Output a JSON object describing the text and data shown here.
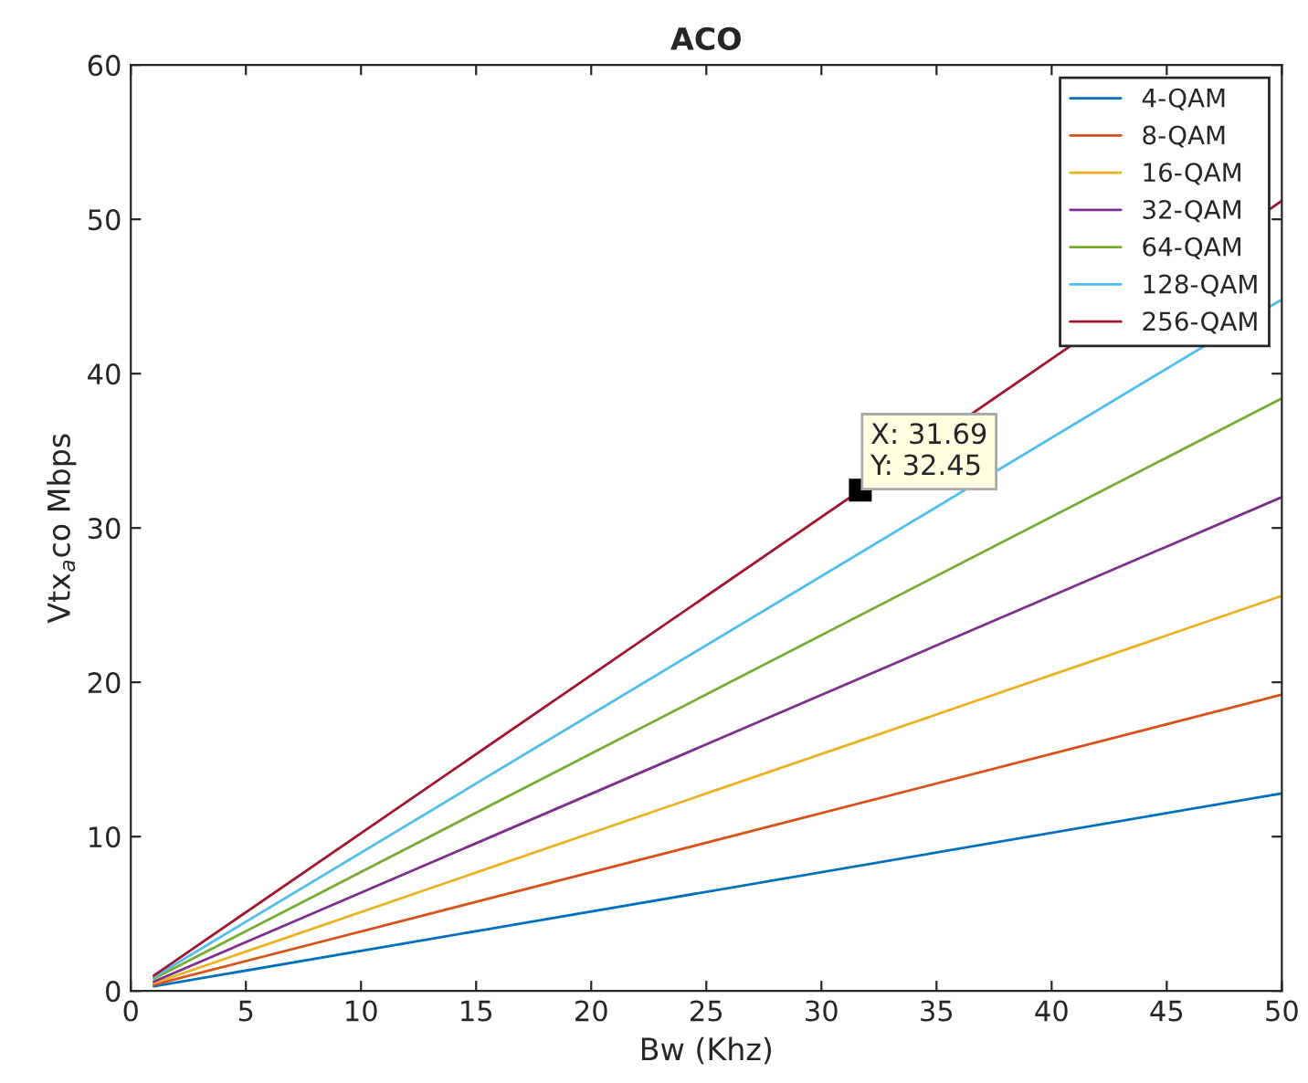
{
  "chart_data": {
    "type": "line",
    "title": "ACO",
    "xlabel": "Bw (Khz)",
    "ylabel": "Vtx$_{a}$co Mbps",
    "x": [
      1,
      50
    ],
    "series": [
      {
        "name": "4-QAM",
        "color": "#0072bd",
        "values": [
          0.3,
          12.8
        ]
      },
      {
        "name": "8-QAM",
        "color": "#d95319",
        "values": [
          0.4,
          19.2
        ]
      },
      {
        "name": "16-QAM",
        "color": "#edb120",
        "values": [
          0.5,
          25.6
        ]
      },
      {
        "name": "32-QAM",
        "color": "#7e2f8e",
        "values": [
          0.6,
          32
        ]
      },
      {
        "name": "64-QAM",
        "color": "#77ac30",
        "values": [
          0.8,
          38.4
        ]
      },
      {
        "name": "128-QAM",
        "color": "#4dbeee",
        "values": [
          0.9,
          44.8
        ]
      },
      {
        "name": "256-QAM",
        "color": "#a2142f",
        "values": [
          1.0,
          51.2
        ]
      }
    ],
    "annotations": [
      {
        "text": "X: 31.69\nY: 32.45",
        "x": 31.69,
        "y": 32.45
      }
    ],
    "xlim": [
      0,
      50
    ],
    "ylim": [
      0,
      60
    ],
    "xticks": [
      0,
      5,
      10,
      15,
      20,
      25,
      30,
      35,
      40,
      45,
      50
    ],
    "yticks": [
      0,
      10,
      20,
      30,
      40,
      50,
      60
    ],
    "grid": false,
    "legend": "top right",
    "marker": "none",
    "line_style": "solid"
  }
}
